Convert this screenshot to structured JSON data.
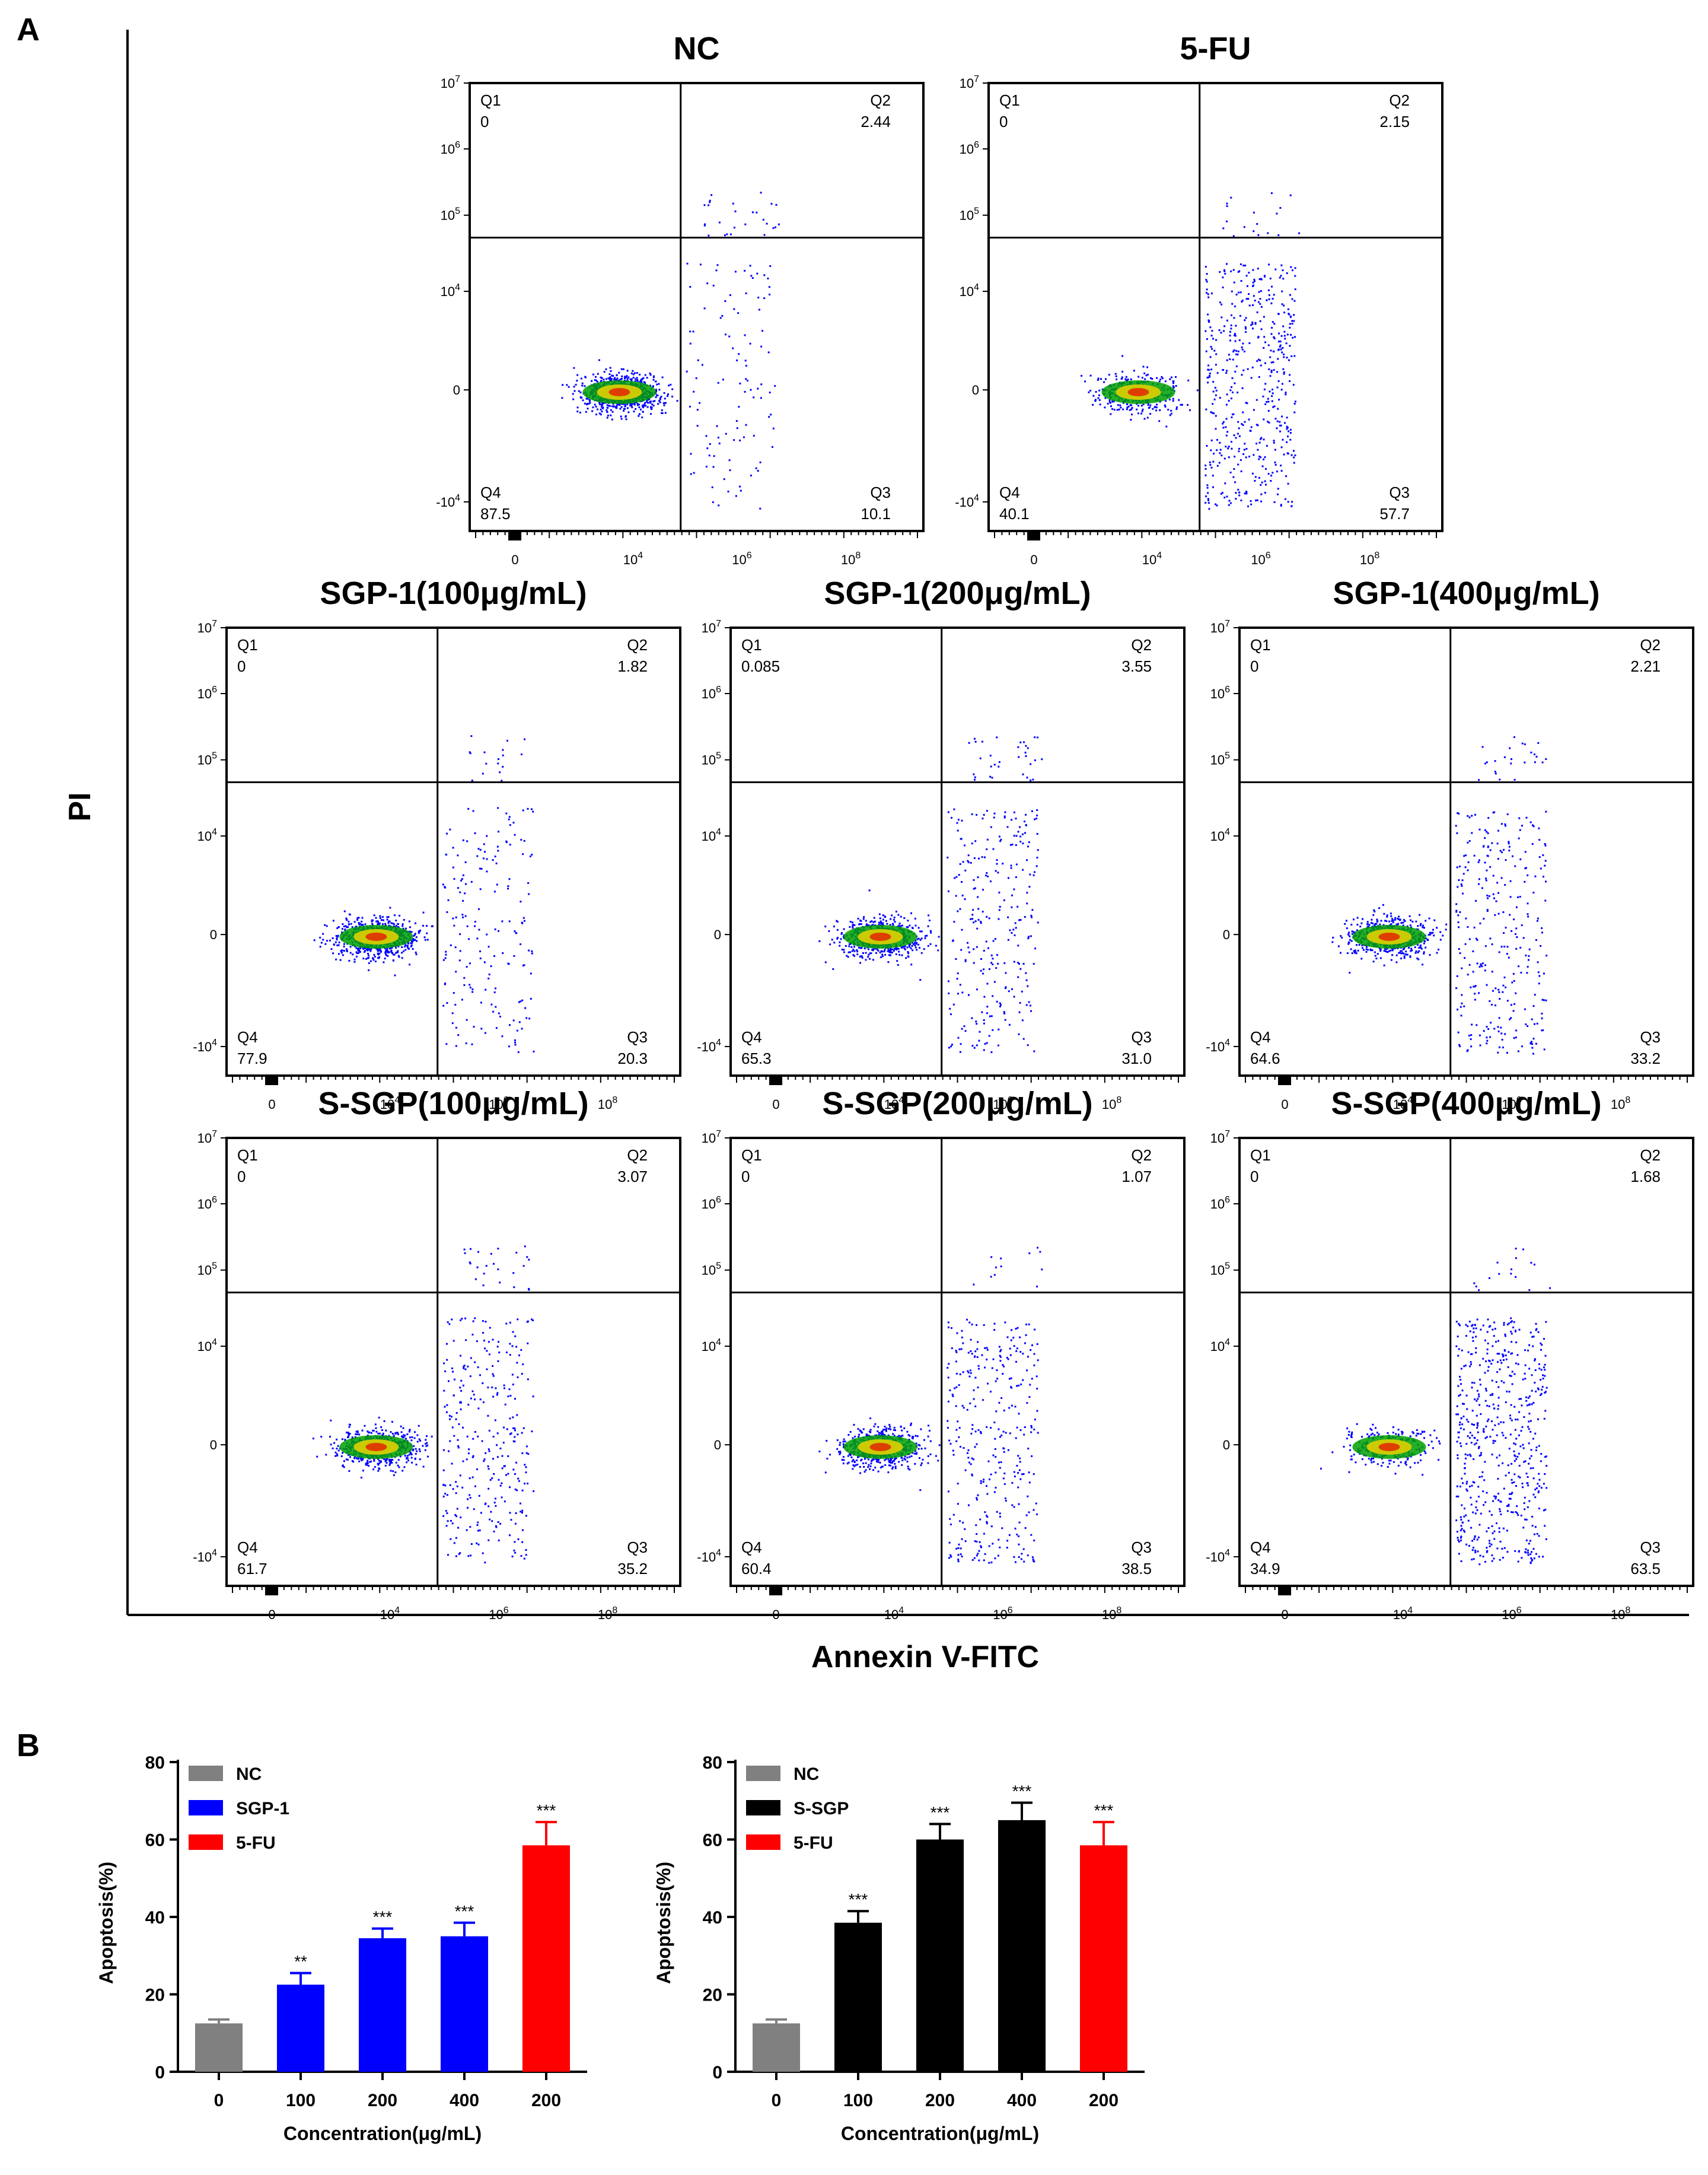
{
  "panel_labels": {
    "a": "A",
    "b": "B"
  },
  "flow_axes": {
    "x_title": "Annexin V-FITC",
    "y_title": "PI"
  },
  "flow_ticks": {
    "y": [
      "10^7",
      "10^6",
      "10^5",
      "10^4",
      "0",
      "-10^4"
    ],
    "x": [
      "0",
      "10^4",
      "10^6",
      "10^8"
    ]
  },
  "colors": {
    "nc": "#808080",
    "sgp1": "#0000ff",
    "ssgp": "#000000",
    "fu": "#ff0000",
    "dots": "#0000ff"
  },
  "flow_plots": [
    {
      "title": "NC",
      "q1_label": "Q1",
      "q1": "0",
      "q2_label": "Q2",
      "q2": "2.44",
      "q3_label": "Q3",
      "q3": "10.1",
      "q4_label": "Q4",
      "q4": "87.5"
    },
    {
      "title": "5-FU",
      "q1_label": "Q1",
      "q1": "0",
      "q2_label": "Q2",
      "q2": "2.15",
      "q3_label": "Q3",
      "q3": "57.7",
      "q4_label": "Q4",
      "q4": "40.1"
    },
    {
      "title": "SGP-1(100μg/mL)",
      "q1_label": "Q1",
      "q1": "0",
      "q2_label": "Q2",
      "q2": "1.82",
      "q3_label": "Q3",
      "q3": "20.3",
      "q4_label": "Q4",
      "q4": "77.9"
    },
    {
      "title": "SGP-1(200μg/mL)",
      "q1_label": "Q1",
      "q1": "0.085",
      "q2_label": "Q2",
      "q2": "3.55",
      "q3_label": "Q3",
      "q3": "31.0",
      "q4_label": "Q4",
      "q4": "65.3"
    },
    {
      "title": "SGP-1(400μg/mL)",
      "q1_label": "Q1",
      "q1": "0",
      "q2_label": "Q2",
      "q2": "2.21",
      "q3_label": "Q3",
      "q3": "33.2",
      "q4_label": "Q4",
      "q4": "64.6"
    },
    {
      "title": "S-SGP(100μg/mL)",
      "q1_label": "Q1",
      "q1": "0",
      "q2_label": "Q2",
      "q2": "3.07",
      "q3_label": "Q3",
      "q3": "35.2",
      "q4_label": "Q4",
      "q4": "61.7"
    },
    {
      "title": "S-SGP(200μg/mL)",
      "q1_label": "Q1",
      "q1": "0",
      "q2_label": "Q2",
      "q2": "1.07",
      "q3_label": "Q3",
      "q3": "38.5",
      "q4_label": "Q4",
      "q4": "60.4"
    },
    {
      "title": "S-SGP(400μg/mL)",
      "q1_label": "Q1",
      "q1": "0",
      "q2_label": "Q2",
      "q2": "1.68",
      "q3_label": "Q3",
      "q3": "63.5",
      "q4_label": "Q4",
      "q4": "34.9"
    }
  ],
  "chart_data": [
    {
      "type": "bar",
      "title": "",
      "xlabel": "Concentration(μg/mL)",
      "ylabel": "Apoptosis(%)",
      "ylim": [
        0,
        80
      ],
      "yticks": [
        "0",
        "20",
        "40",
        "60",
        "80"
      ],
      "categories": [
        "0",
        "100",
        "200",
        "400",
        "200"
      ],
      "values": [
        12.5,
        22.5,
        34.5,
        35.0,
        58.5
      ],
      "errors": [
        1.0,
        3.0,
        2.5,
        3.5,
        6.0
      ],
      "significance": [
        "",
        "**",
        "***",
        "***",
        "***"
      ],
      "bar_series": [
        "nc",
        "sgp1",
        "sgp1",
        "sgp1",
        "fu"
      ],
      "legend": [
        {
          "key": "nc",
          "label": "NC"
        },
        {
          "key": "sgp1",
          "label": "SGP-1"
        },
        {
          "key": "fu",
          "label": "5-FU"
        }
      ]
    },
    {
      "type": "bar",
      "title": "",
      "xlabel": "Concentration(μg/mL)",
      "ylabel": "Apoptosis(%)",
      "ylim": [
        0,
        80
      ],
      "yticks": [
        "0",
        "20",
        "40",
        "60",
        "80"
      ],
      "categories": [
        "0",
        "100",
        "200",
        "400",
        "200"
      ],
      "values": [
        12.5,
        38.5,
        60.0,
        65.0,
        58.5
      ],
      "errors": [
        1.0,
        3.0,
        4.0,
        4.5,
        6.0
      ],
      "significance": [
        "",
        "***",
        "***",
        "***",
        "***"
      ],
      "bar_series": [
        "nc",
        "ssgp",
        "ssgp",
        "ssgp",
        "fu"
      ],
      "legend": [
        {
          "key": "nc",
          "label": "NC"
        },
        {
          "key": "ssgp",
          "label": "S-SGP"
        },
        {
          "key": "fu",
          "label": "5-FU"
        }
      ]
    }
  ]
}
